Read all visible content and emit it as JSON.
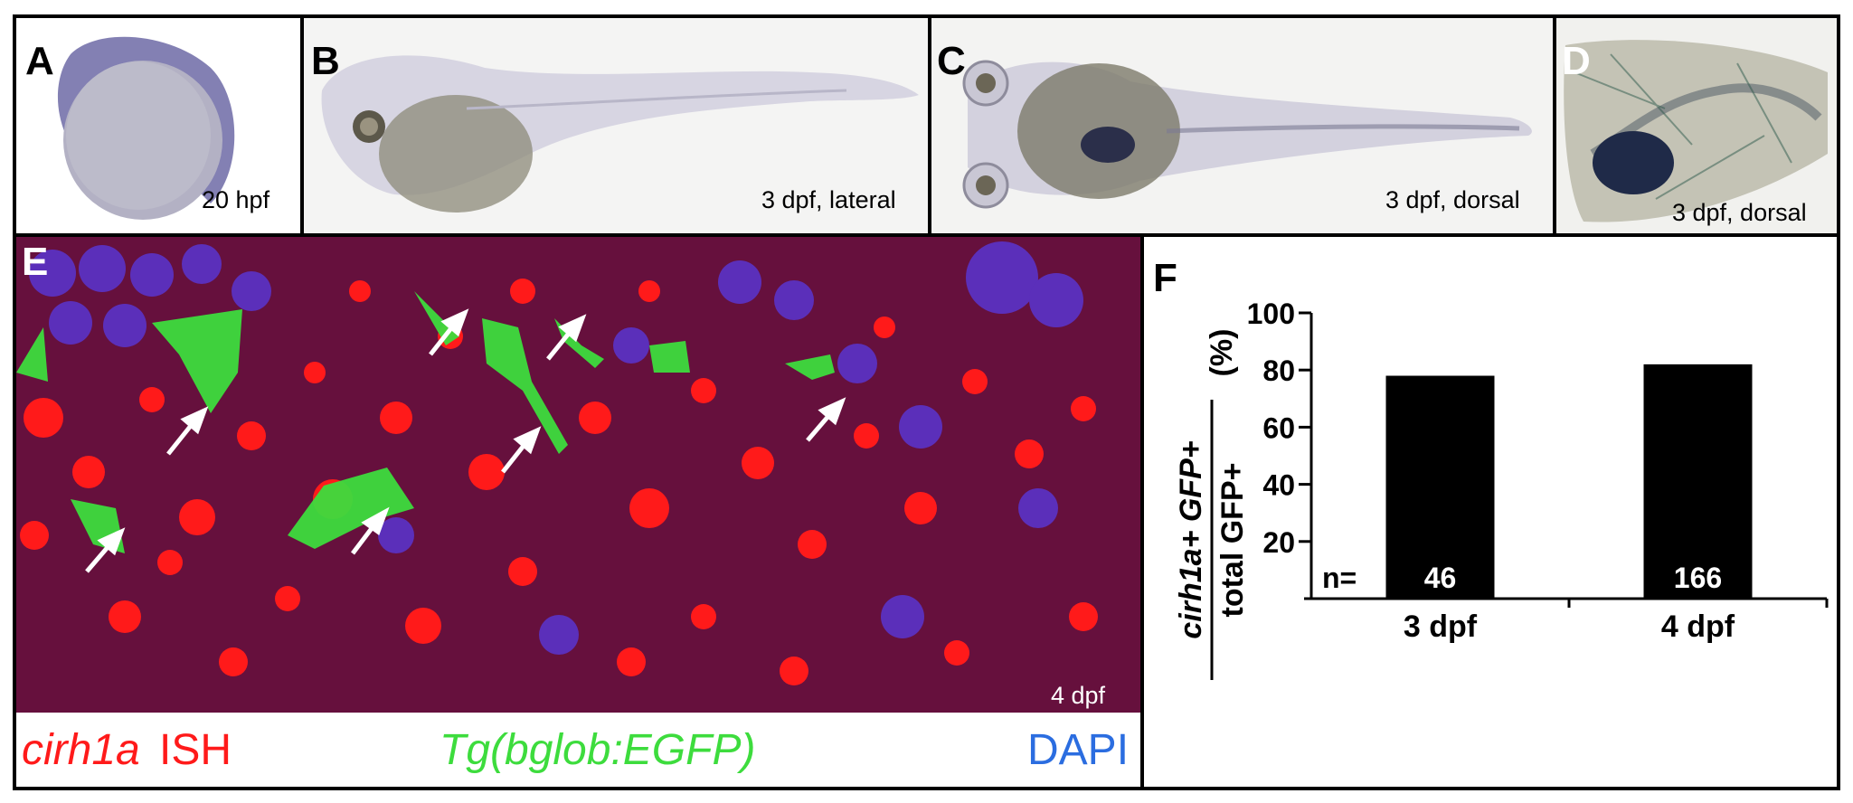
{
  "panels": {
    "a": {
      "letter": "A",
      "caption": "20 hpf"
    },
    "b": {
      "letter": "B",
      "caption": "3 dpf, lateral"
    },
    "c": {
      "letter": "C",
      "caption": "3 dpf, dorsal"
    },
    "d": {
      "letter": "D",
      "caption": "3 dpf, dorsal"
    },
    "e": {
      "letter": "E",
      "caption": "4 dpf",
      "legend": {
        "ish_gene": "cirh1a",
        "ish_suffix": " ISH",
        "transgene": "Tg(bglob:EGFP)",
        "stain": "DAPI"
      }
    },
    "f": {
      "letter": "F"
    }
  },
  "colors": {
    "ish_red": "#ff1a1a",
    "egfp_green": "#3ddc3d",
    "dapi_blue": "#2b6de0",
    "bar_black": "#000000",
    "wholemount_stain": "#6a6aa8"
  },
  "chart_data": {
    "type": "bar",
    "categories": [
      "3 dpf",
      "4 dpf"
    ],
    "values": [
      78,
      82
    ],
    "n_prefix": "n=",
    "n_labels": [
      "46",
      "166"
    ],
    "ylabel_numerator": "cirh1a+ GFP+",
    "ylabel_denominator": "total GFP+",
    "ylabel_unit": "(%)",
    "ylim": [
      0,
      100
    ],
    "yticks": [
      "20",
      "40",
      "60",
      "80",
      "100"
    ],
    "grid": false
  }
}
